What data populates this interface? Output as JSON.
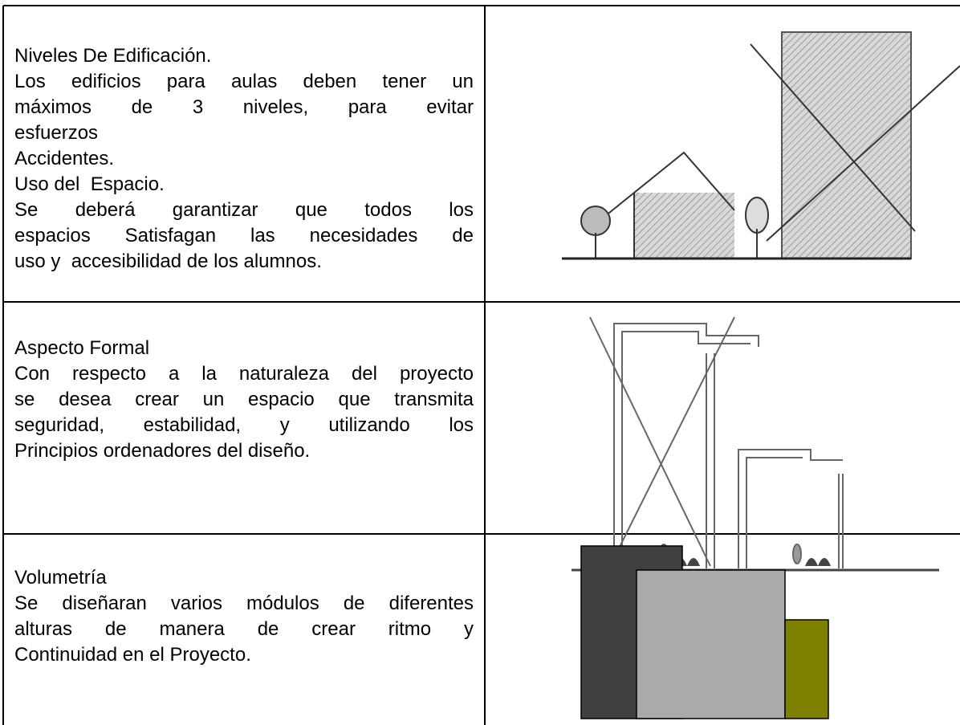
{
  "rows": [
    {
      "lines": [
        "Niveles De Edificación.",
        "Los edificios para aulas deben tener un",
        "máximos de 3 niveles, para evitar",
        "esfuerzos",
        "Accidentes.",
        "Uso del  Espacio.",
        "Se deberá garantizar que todos los",
        "espacios Satisfagan las necesidades de",
        "uso y  accesibilidad de los alumnos."
      ]
    },
    {
      "lines": [
        "Aspecto Formal",
        "Con respecto a la naturaleza del proyecto",
        "se desea crear un espacio que transmita",
        "seguridad, estabilidad, y utilizando los",
        "Principios ordenadores del diseño."
      ]
    },
    {
      "lines": [
        "Volumetría",
        "Se diseñaran varios módulos de diferentes",
        "alturas de manera de crear ritmo y",
        "Continuidad en el Proyecto."
      ]
    }
  ]
}
